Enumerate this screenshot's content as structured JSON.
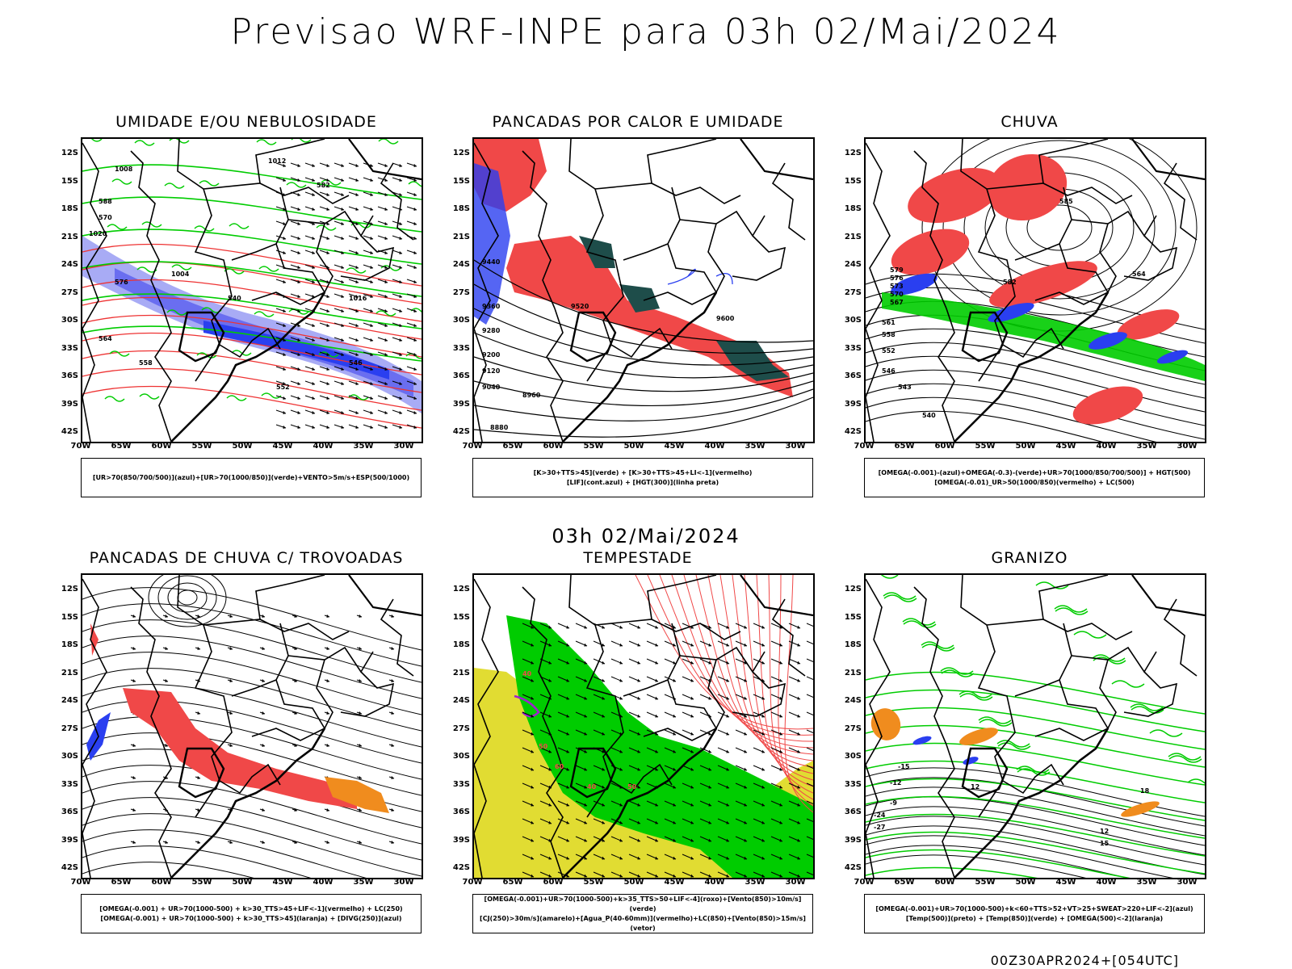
{
  "title": "Previsao WRF-INPE  para 03h 02/Mai/2024",
  "subtitle": "03h 02/Mai/2024",
  "footer": "00Z30APR2024+[054UTC]",
  "lat_labels": [
    "12S",
    "15S",
    "18S",
    "21S",
    "24S",
    "27S",
    "30S",
    "33S",
    "36S",
    "39S",
    "42S"
  ],
  "lon_labels": [
    "70W",
    "65W",
    "60W",
    "55W",
    "50W",
    "45W",
    "40W",
    "35W",
    "30W"
  ],
  "panels": [
    {
      "title": "UMIDADE E/OU NEBULOSIDADE",
      "legend": [
        "[UR>70(850/700/500)](azul)+[UR>70(1000/850)](verde)+VENTO>5m/s+ESP(500/1000)"
      ],
      "contour_labels": [
        "1008",
        "1012",
        "1004",
        "1016",
        "1020",
        "570",
        "576",
        "564",
        "558",
        "552",
        "546",
        "540",
        "582",
        "588"
      ]
    },
    {
      "title": "PANCADAS POR CALOR E UMIDADE",
      "legend": [
        "[K>30+TTS>45](verde) + [K>30+TTS>45+LI<-1](vermelho)",
        "[LIF](cont.azul) + [HGT(300)](linha preta)"
      ],
      "contour_labels": [
        "9600",
        "9520",
        "9440",
        "9360",
        "9280",
        "9200",
        "9120",
        "9040",
        "8960",
        "8880"
      ]
    },
    {
      "title": "CHUVA",
      "legend": [
        "[OMEGA(-0.001)-(azul)+OMEGA(-0.3)-(verde)+UR>70(1000/850/700/500)] + HGT(500)",
        "[OMEGA(-0.01)_UR>50(1000/850)(vermelho) + LC(500)"
      ],
      "contour_labels": [
        "585",
        "582",
        "579",
        "576",
        "573",
        "570",
        "567",
        "564",
        "561",
        "558",
        "552",
        "546",
        "543",
        "540"
      ]
    },
    {
      "title": "PANCADAS DE CHUVA C/ TROVOADAS",
      "legend": [
        "[OMEGA(-0.001) + UR>70(1000-500) + k>30_TTS>45+LIF<-1](vermelho) + LC(250)",
        "[OMEGA(-0.001) + UR>70(1000-500) + k>30_TTS>45](laranja) + [DIVG(250)](azul)"
      ],
      "contour_labels": []
    },
    {
      "title": "TEMPESTADE",
      "legend": [
        "[OMEGA(-0.001)+UR>70(1000-500)+k>35_TTS>50+LIF<-4](roxo)+[Vento(850)>10m/s](verde)",
        "[CJ(250)>30m/s](amarelo)+[Agua_P(40-60mm)](vermelho)+LC(850)+[Vento(850)>15m/s](vetor)"
      ],
      "contour_labels": [
        "40",
        "50",
        "60",
        "40",
        "50"
      ]
    },
    {
      "title": "GRANIZO",
      "legend": [
        "[OMEGA(-0.001)+UR>70(1000-500)+k<60+TTS>52+VT>25+SWEAT>220+LIF<-2](azul)",
        "[Temp(500)](preto) + [Temp(850)](verde) + [OMEGA(500)<-2](laranja)"
      ],
      "contour_labels": [
        "-15",
        "-12",
        "-9",
        "-24",
        "-27",
        "12",
        "12",
        "15",
        "18"
      ]
    }
  ],
  "colors": {
    "red": "#f04848",
    "blue": "#2a3ff0",
    "green": "#00cc00",
    "teal": "#1e4d4a",
    "lightblue": "#a8abf5",
    "midblue": "#6a6ef0",
    "orange": "#f08c1e",
    "yellow": "#e1dc32",
    "purple": "#a020d0"
  }
}
